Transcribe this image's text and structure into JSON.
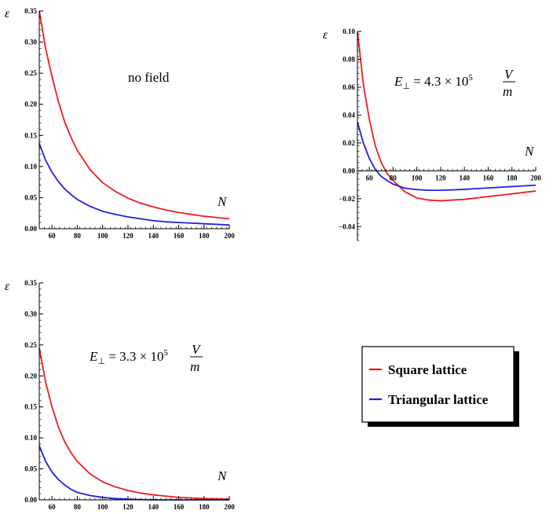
{
  "colors": {
    "red": "#ee1c1c",
    "blue": "#2020dd"
  },
  "legend": {
    "entries": [
      {
        "label": "Square lattice",
        "color": "#ee1c1c"
      },
      {
        "label": "Triangular lattice",
        "color": "#2020dd"
      }
    ]
  },
  "chart_data": [
    {
      "type": "line",
      "annotation": "no field",
      "xlabel": "N",
      "ylabel": "ε",
      "xlim": [
        50,
        200
      ],
      "ylim": [
        0,
        0.35
      ],
      "xticks": [
        60,
        80,
        100,
        120,
        140,
        160,
        180,
        200
      ],
      "yticks": [
        0.0,
        0.05,
        0.1,
        0.15,
        0.2,
        0.25,
        0.3,
        0.35
      ],
      "xtick_labels": [
        "60",
        "80",
        "100",
        "120",
        "140",
        "160",
        "180",
        "200"
      ],
      "ytick_labels": [
        "0.00",
        "0.05",
        "0.10",
        "0.15",
        "0.20",
        "0.25",
        "0.30",
        "0.35"
      ],
      "series": [
        {
          "name": "Square lattice",
          "x": [
            50,
            55,
            60,
            65,
            70,
            75,
            80,
            90,
            100,
            110,
            120,
            130,
            140,
            150,
            160,
            170,
            180,
            190,
            200
          ],
          "y": [
            0.35,
            0.29,
            0.245,
            0.205,
            0.172,
            0.147,
            0.126,
            0.095,
            0.074,
            0.06,
            0.049,
            0.041,
            0.035,
            0.03,
            0.026,
            0.023,
            0.02,
            0.018,
            0.016
          ]
        },
        {
          "name": "Triangular lattice",
          "x": [
            50,
            55,
            60,
            65,
            70,
            75,
            80,
            90,
            100,
            110,
            120,
            130,
            140,
            150,
            160,
            170,
            180,
            190,
            200
          ],
          "y": [
            0.137,
            0.11,
            0.091,
            0.076,
            0.064,
            0.055,
            0.047,
            0.036,
            0.028,
            0.023,
            0.019,
            0.016,
            0.013,
            0.011,
            0.01,
            0.009,
            0.008,
            0.007,
            0.006
          ]
        }
      ]
    },
    {
      "type": "line",
      "annotation": "E⊥ = 4.3 × 10⁵ V/m",
      "xlabel": "N",
      "ylabel": "ε",
      "xlim": [
        50,
        200
      ],
      "ylim": [
        -0.05,
        0.1
      ],
      "xticks": [
        60,
        80,
        100,
        120,
        140,
        160,
        180,
        200
      ],
      "yticks": [
        -0.04,
        -0.02,
        0.0,
        0.02,
        0.04,
        0.06,
        0.08,
        0.1
      ],
      "xtick_labels": [
        "60",
        "80",
        "100",
        "120",
        "140",
        "160",
        "180",
        "200"
      ],
      "ytick_labels": [
        "−0.04",
        "−0.02",
        "0.00",
        "0.02",
        "0.04",
        "0.06",
        "0.08",
        "0.10"
      ],
      "series": [
        {
          "name": "Square lattice",
          "x": [
            50,
            55,
            60,
            65,
            70,
            75,
            80,
            90,
            100,
            110,
            120,
            130,
            140,
            150,
            160,
            170,
            180,
            190,
            200
          ],
          "y": [
            0.1,
            0.062,
            0.037,
            0.018,
            0.006,
            -0.002,
            -0.007,
            -0.015,
            -0.0195,
            -0.021,
            -0.0215,
            -0.021,
            -0.0205,
            -0.0195,
            -0.0185,
            -0.0175,
            -0.0165,
            -0.0155,
            -0.0145
          ]
        },
        {
          "name": "Triangular lattice",
          "x": [
            50,
            55,
            60,
            65,
            70,
            75,
            80,
            90,
            100,
            110,
            120,
            130,
            140,
            150,
            160,
            170,
            180,
            190,
            200
          ],
          "y": [
            0.035,
            0.02,
            0.009,
            0.001,
            -0.004,
            -0.007,
            -0.0095,
            -0.0125,
            -0.0135,
            -0.014,
            -0.014,
            -0.0137,
            -0.0133,
            -0.0128,
            -0.0123,
            -0.0118,
            -0.0113,
            -0.0108,
            -0.0103
          ]
        }
      ]
    },
    {
      "type": "line",
      "annotation": "E⊥ = 3.3 × 10⁵ V/m",
      "xlabel": "N",
      "ylabel": "ε",
      "xlim": [
        50,
        200
      ],
      "ylim": [
        0,
        0.35
      ],
      "xticks": [
        60,
        80,
        100,
        120,
        140,
        160,
        180,
        200
      ],
      "yticks": [
        0.0,
        0.05,
        0.1,
        0.15,
        0.2,
        0.25,
        0.3,
        0.35
      ],
      "xtick_labels": [
        "60",
        "80",
        "100",
        "120",
        "140",
        "160",
        "180",
        "200"
      ],
      "ytick_labels": [
        "0.00",
        "0.05",
        "0.10",
        "0.15",
        "0.20",
        "0.25",
        "0.30",
        "0.35"
      ],
      "series": [
        {
          "name": "Square lattice",
          "x": [
            50,
            55,
            60,
            65,
            70,
            75,
            80,
            90,
            100,
            110,
            120,
            130,
            140,
            150,
            160,
            170,
            180,
            190,
            200
          ],
          "y": [
            0.245,
            0.19,
            0.15,
            0.118,
            0.094,
            0.076,
            0.062,
            0.042,
            0.029,
            0.021,
            0.015,
            0.011,
            0.008,
            0.006,
            0.004,
            0.003,
            0.002,
            0.0015,
            0.001
          ]
        },
        {
          "name": "Triangular lattice",
          "x": [
            50,
            55,
            60,
            65,
            70,
            75,
            80,
            90,
            100,
            110,
            120,
            130,
            140,
            150,
            160,
            170,
            180,
            190,
            200
          ],
          "y": [
            0.087,
            0.062,
            0.045,
            0.033,
            0.024,
            0.017,
            0.012,
            0.007,
            0.004,
            0.002,
            0.001,
            0.0005,
            0.0,
            0.0,
            0.0,
            0.0,
            0.0,
            0.0,
            0.0
          ]
        }
      ]
    }
  ]
}
